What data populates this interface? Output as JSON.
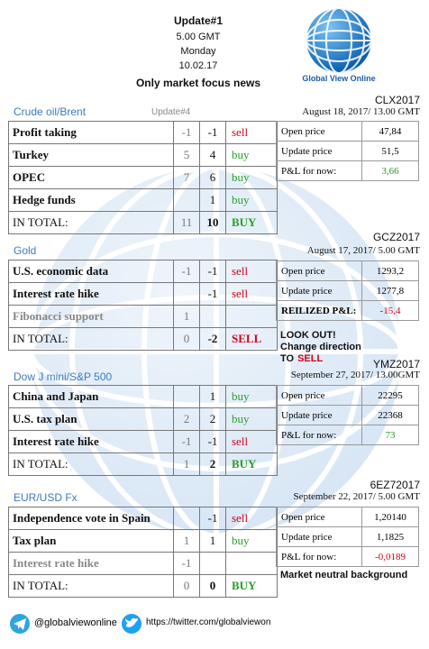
{
  "header": {
    "title": "Update#1",
    "time": "5.00 GMT",
    "day": "Monday",
    "date": "10.02.17",
    "tagline": "Only market focus news"
  },
  "logo": {
    "label": "Global View Online"
  },
  "sections": [
    {
      "title": "Crude oil/Brent",
      "update_label": "Update#4",
      "factors": [
        {
          "name": "Profit taking",
          "previous": "-1",
          "current": "-1",
          "signal": "sell",
          "color": "#d0021b"
        },
        {
          "name": "Turkey",
          "previous": "5",
          "current": "4",
          "signal": "buy",
          "color": "#2a9d2a"
        },
        {
          "name": "OPEC",
          "previous": "7",
          "current": "6",
          "signal": "buy",
          "color": "#2a9d2a"
        },
        {
          "name": "Hedge funds",
          "previous": null,
          "current": "1",
          "signal": "buy",
          "color": "#2a9d2a"
        }
      ],
      "total": {
        "name": "IN TOTAL:",
        "previous": "11",
        "current": "10",
        "signal": "BUY",
        "color": "#2a9d2a"
      },
      "contract": {
        "code": "CLX2017",
        "date": "August 18, 2017/ 13.00 GMT",
        "rows": [
          {
            "label": "Open price",
            "value": "47,84"
          },
          {
            "label": "Update price",
            "value": "51,5"
          },
          {
            "label": "P&L for now:",
            "value": "3,66",
            "color": "#2a9d2a"
          }
        ]
      }
    },
    {
      "title": "Gold",
      "factors": [
        {
          "name": "U.S. economic data",
          "previous": "-1",
          "current": "-1",
          "signal": "sell",
          "color": "#d0021b"
        },
        {
          "name": "Interest rate hike",
          "previous": null,
          "current": "-1",
          "signal": "sell",
          "color": "#d0021b"
        },
        {
          "name": "Fibonacci support",
          "previous": "1",
          "current": null,
          "signal": null
        }
      ],
      "total": {
        "name": "IN TOTAL:",
        "previous": "0",
        "current": "-2",
        "signal": "SELL",
        "color": "#d0021b"
      },
      "contract": {
        "code": "GCZ2017",
        "date": "August 17, 2017/ 5.00 GMT",
        "rows": [
          {
            "label": "Open price",
            "value": "1293,2"
          },
          {
            "label": "Update price",
            "value": "1277,8"
          },
          {
            "label": "REILIZED P&L:",
            "value": "-15,4",
            "color": "#d0021b",
            "bold": true
          }
        ]
      },
      "note": {
        "lines": [
          "LOOK OUT!",
          "Change direction"
        ],
        "action_prefix": "TO",
        "action": "SELL",
        "action_color": "#d0021b"
      }
    },
    {
      "title": "Dow J mini/S&P 500",
      "factors": [
        {
          "name": "China and Japan",
          "previous": null,
          "current": "1",
          "signal": "buy",
          "color": "#2a9d2a"
        },
        {
          "name": "U.S. tax plan",
          "previous": "2",
          "current": "2",
          "signal": "buy",
          "color": "#2a9d2a"
        },
        {
          "name": "Interest rate hike",
          "previous": "-1",
          "current": "-1",
          "signal": "sell",
          "color": "#d0021b"
        }
      ],
      "total": {
        "name": "IN TOTAL:",
        "previous": "1",
        "current": "2",
        "signal": "BUY",
        "color": "#2a9d2a"
      },
      "contract": {
        "code": "YMZ2017",
        "date": "September 27, 2017/ 13.00GMT",
        "rows": [
          {
            "label": "Open price",
            "value": "22295"
          },
          {
            "label": "Update price",
            "value": "22368"
          },
          {
            "label": "P&L for now:",
            "value": "73",
            "color": "#2a9d2a"
          }
        ]
      }
    },
    {
      "title": "EUR/USD Fx",
      "factors": [
        {
          "name": "Independence vote in Spain",
          "previous": null,
          "current": "-1",
          "signal": "sell",
          "color": "#d0021b"
        },
        {
          "name": "Tax plan",
          "previous": "1",
          "current": "1",
          "signal": "buy",
          "color": "#2a9d2a"
        },
        {
          "name": "Interest rate hike",
          "previous": "-1",
          "current": null,
          "signal": null
        }
      ],
      "total": {
        "name": "IN TOTAL:",
        "previous": "0",
        "current": "0",
        "signal": "BUY",
        "color": "#2a9d2a"
      },
      "contract": {
        "code": "6EZ72017",
        "date": "September 22, 2017/ 5.00 GMT",
        "rows": [
          {
            "label": "Open price",
            "value": "1,20140"
          },
          {
            "label": "Update price",
            "value": "1,1825"
          },
          {
            "label": "P&L for now:",
            "value": "-0,0189",
            "color": "#d0021b"
          }
        ]
      },
      "note": {
        "lines": [
          "Market neutral background"
        ]
      }
    }
  ],
  "footer": {
    "telegram": "@globalviewonline",
    "twitter": "https://twitter.com/globalviewon"
  }
}
